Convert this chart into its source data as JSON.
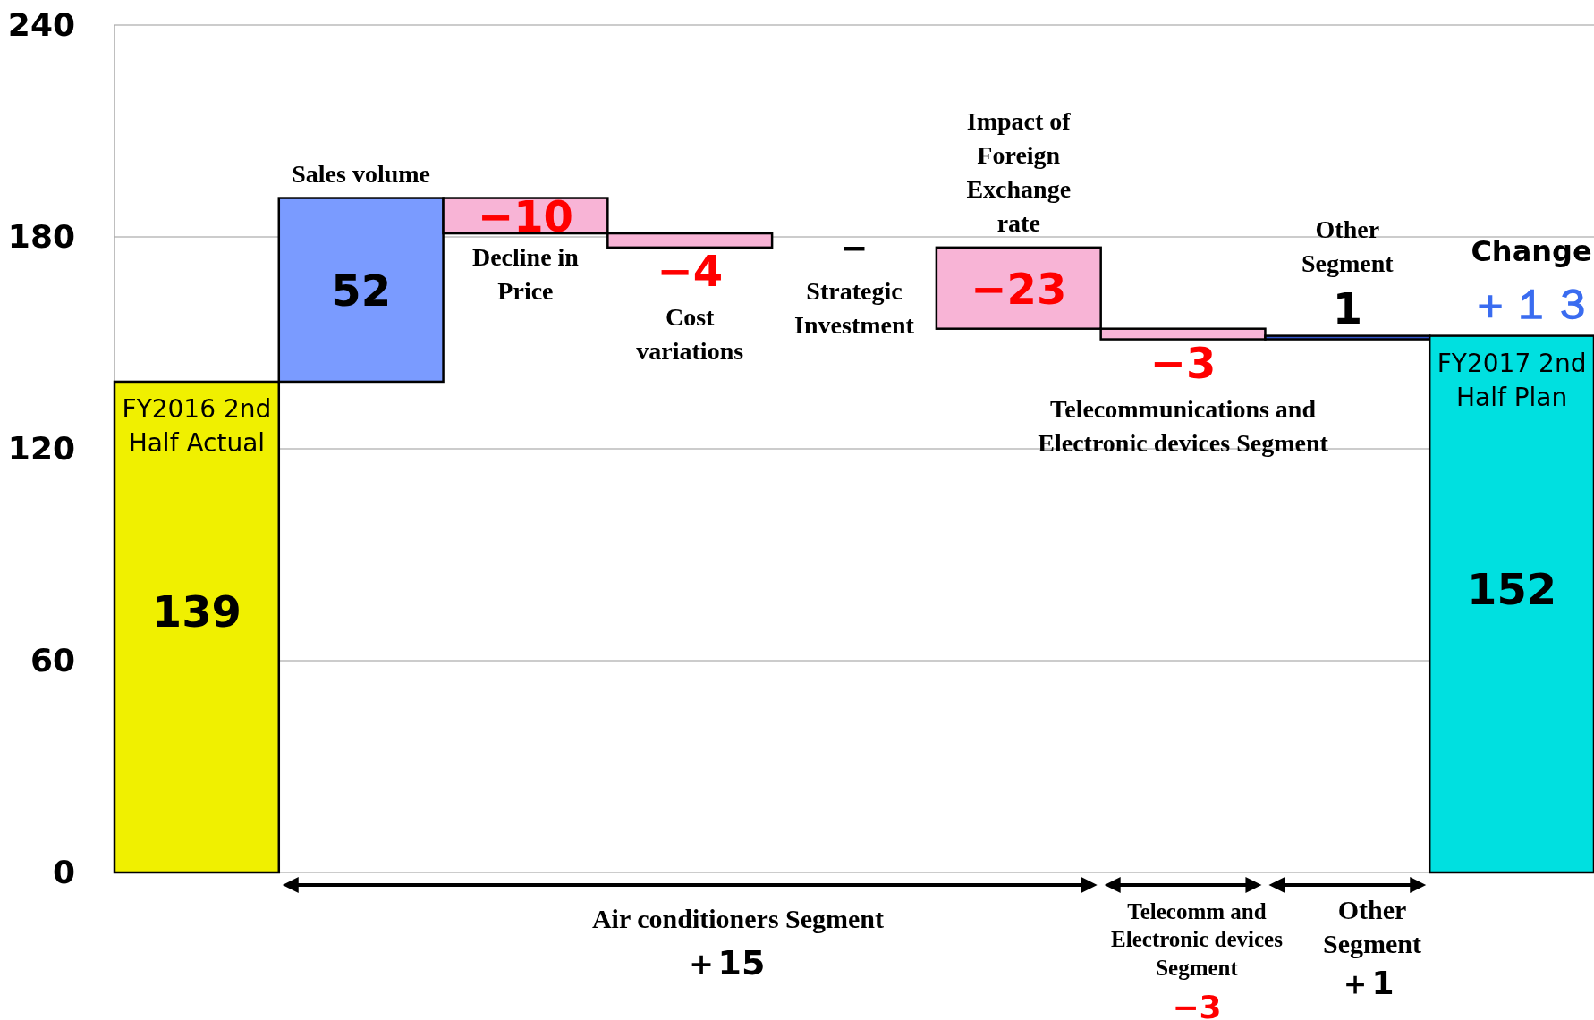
{
  "chart_data": {
    "type": "bar",
    "categories": [
      "FY2016 2nd Half Actual",
      "Sales volume",
      "Decline in Price",
      "Cost variations",
      "Strategic Investment",
      "Impact of Foreign Exchange rate",
      "Telecommunications and Electronic devices Segment",
      "Other Segment",
      "FY2017 2nd Half Plan"
    ],
    "values": [
      139,
      52,
      -10,
      -4,
      null,
      -23,
      -3,
      1,
      152
    ],
    "base": [
      0,
      139,
      191,
      181,
      null,
      177,
      154,
      151,
      0
    ],
    "colors": [
      "#f0f000",
      "#7a9bff",
      "#f8b4d6",
      "#f8b4d6",
      null,
      "#f8b4d6",
      "#f8b4d6",
      "#3355cc",
      "#00e0e0"
    ],
    "value_labels": [
      "139",
      "52",
      "−10",
      "−4",
      null,
      "−23",
      "−3",
      "1",
      "152"
    ],
    "ylim": [
      0,
      240
    ],
    "yticks": [
      0,
      60,
      120,
      180,
      240
    ],
    "grid": "y",
    "tick_labels": "y",
    "annotations": [
      "Change",
      "＋１３",
      "Air conditioners Segment",
      "＋15",
      "Telecomm and Electronic devices Segment",
      "−3",
      "Other Segment",
      "＋1",
      "－"
    ]
  }
}
